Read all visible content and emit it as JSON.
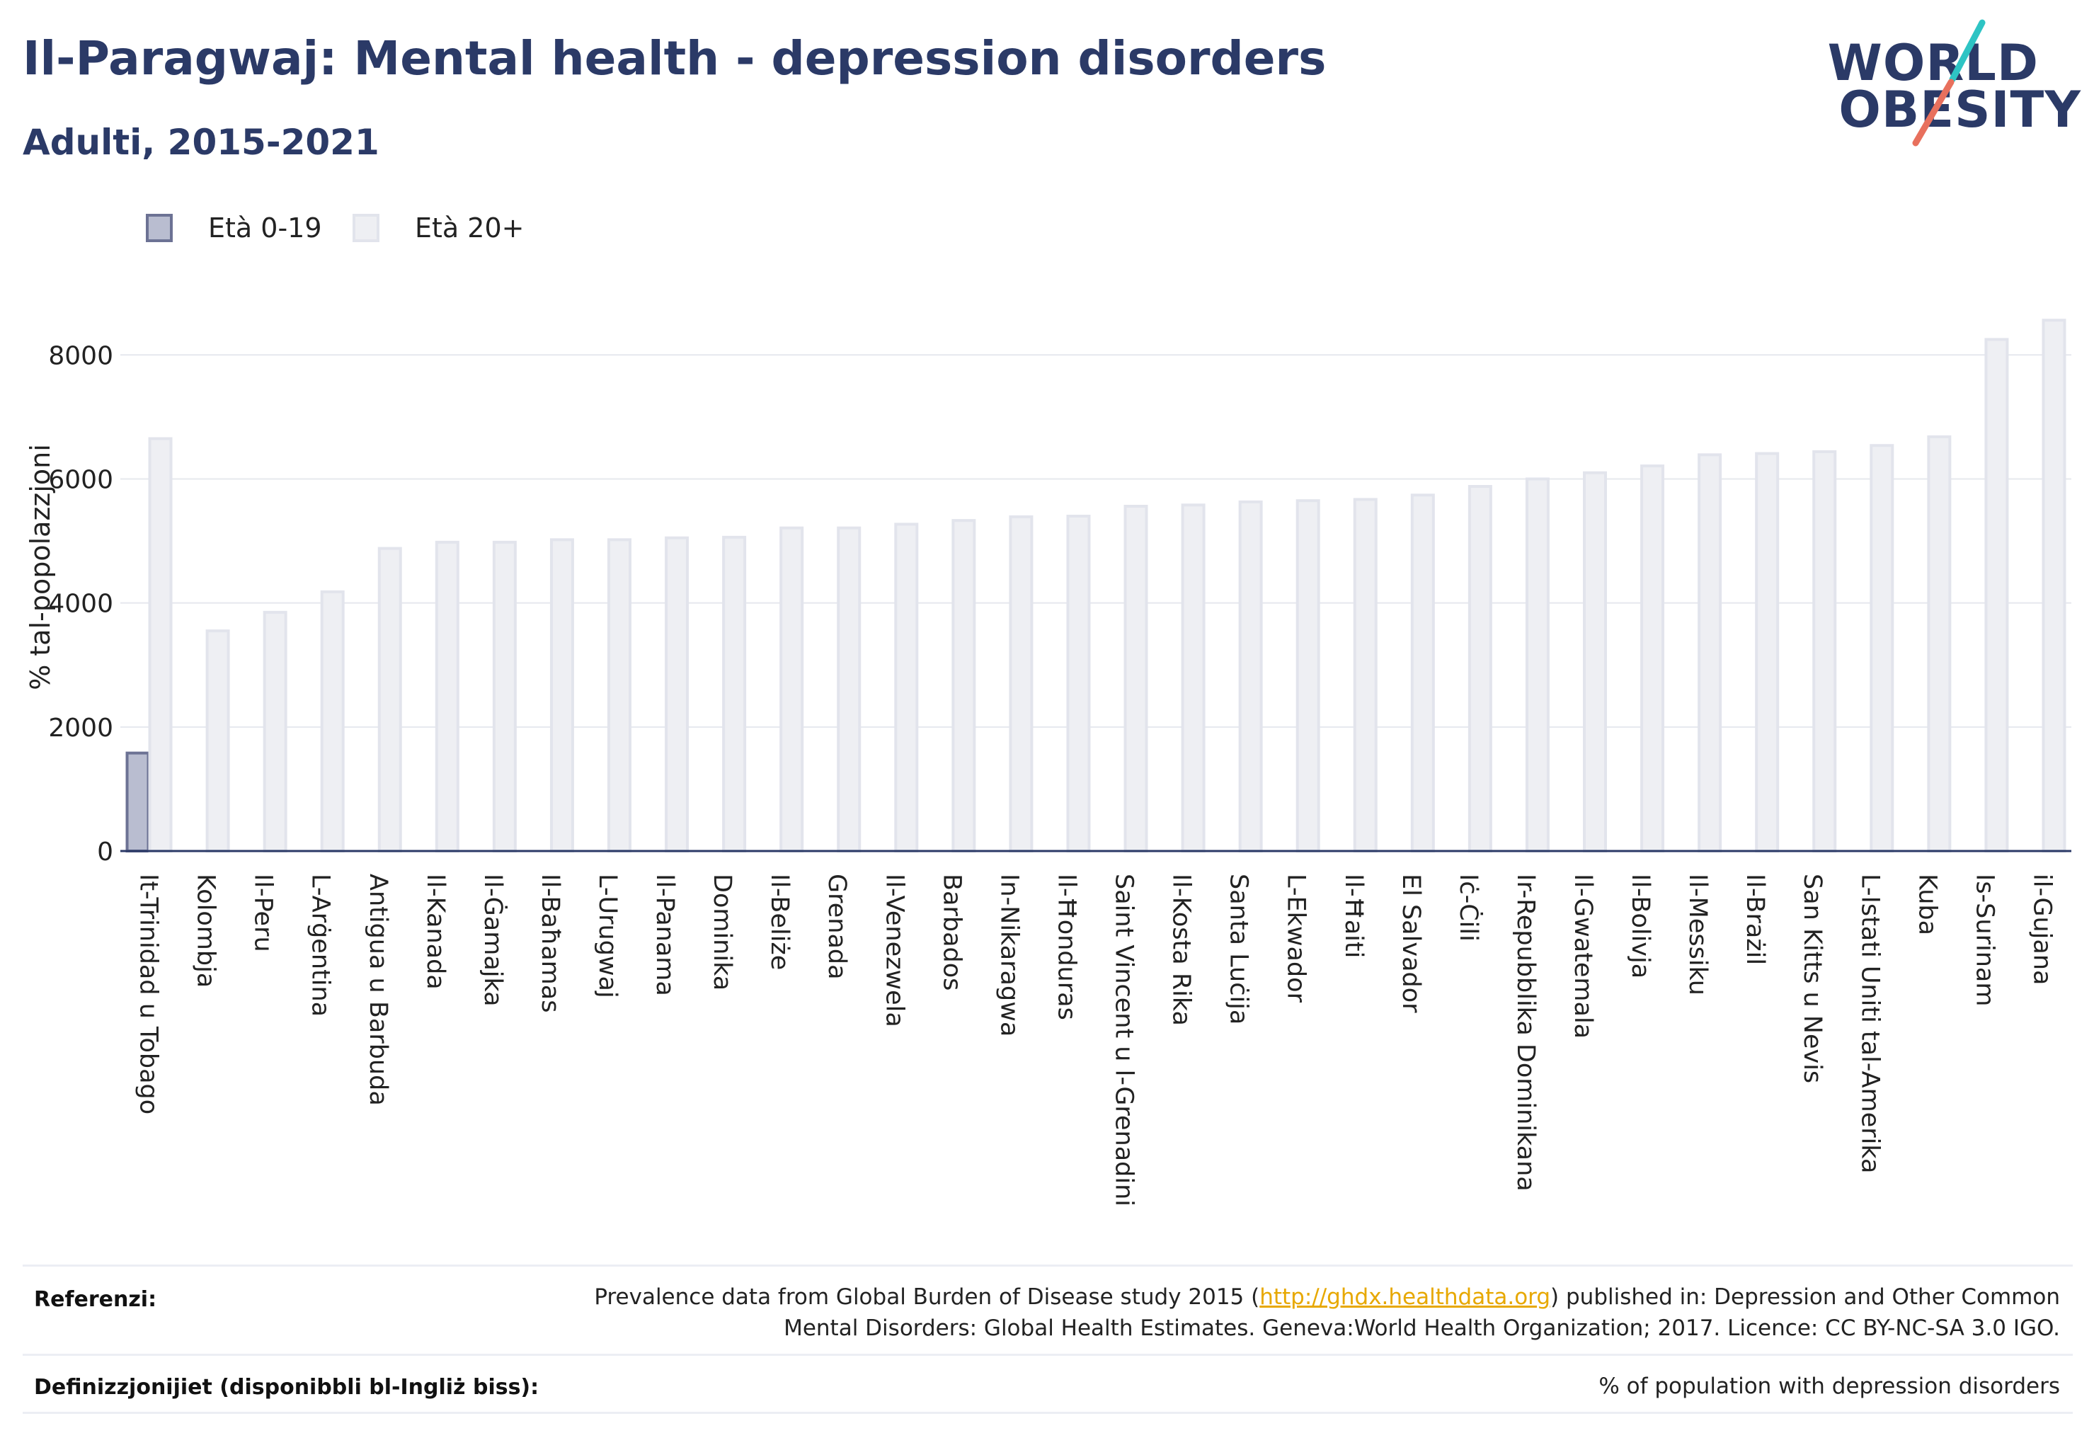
{
  "title": "Il-Paragwaj: Mental health - depression disorders",
  "subtitle": "Adulti, 2015-2021",
  "logo": {
    "line1": "WORLD",
    "line2": "OBESITY"
  },
  "legend": [
    {
      "label": "Età 0-19",
      "fill": "#b9bdd0",
      "stroke": "#6c7294"
    },
    {
      "label": "Età 20+",
      "fill": "#eeeff3",
      "stroke": "#e2e4ec"
    }
  ],
  "colors": {
    "title": "#2b3a67",
    "bar_age0_19_fill": "#b9bdd0",
    "bar_age0_19_stroke": "#6c7294",
    "bar_age20_fill": "#eeeff3",
    "bar_age20_stroke": "#e2e4ec",
    "grid": "#e6e8ee",
    "axis": "#2b3a67",
    "link": "#e7a800",
    "logo_teal": "#2ec4c4",
    "logo_coral": "#e8705d"
  },
  "chart_data": {
    "type": "bar",
    "ylabel": "% tal-popolazzjoni",
    "xlabel": "",
    "ylim": [
      0,
      8700
    ],
    "yticks": [
      0,
      2000,
      4000,
      6000,
      8000
    ],
    "grid": true,
    "legend_position": "top-left",
    "categories": [
      "It-Trinidad u Tobago",
      "Kolombja",
      "Il-Peru",
      "L-Arġentina",
      "Antigua u Barbuda",
      "Il-Kanada",
      "Il-Ġamajka",
      "Il-Baħamas",
      "L-Urugwaj",
      "Il-Panama",
      "Dominika",
      "Il-Beliże",
      "Grenada",
      "Il-Venezwela",
      "Barbados",
      "In-Nikaragwa",
      "Il-Ħonduras",
      "Saint Vincent u l-Grenadini",
      "Il-Kosta Rika",
      "Santa Luċija",
      "L-Ekwador",
      "Il-Ħaiti",
      "El Salvador",
      "Iċ-Ċili",
      "Ir-Repubblika Dominikana",
      "Il-Gwatemala",
      "Il-Bolivja",
      "Il-Messiku",
      "Il-Brażil",
      "San Kitts u Nevis",
      "L-Istati Uniti tal-Amerika",
      "Kuba",
      "Is-Surinam",
      "il-Gujana"
    ],
    "series": [
      {
        "name": "Età 0-19",
        "values": [
          1580,
          null,
          null,
          null,
          null,
          null,
          null,
          null,
          null,
          null,
          null,
          null,
          null,
          null,
          null,
          null,
          null,
          null,
          null,
          null,
          null,
          null,
          null,
          null,
          null,
          null,
          null,
          null,
          null,
          null,
          null,
          null,
          null,
          null
        ]
      },
      {
        "name": "Età 20+",
        "values": [
          6650,
          3550,
          3850,
          4180,
          4880,
          4980,
          4980,
          5020,
          5020,
          5050,
          5060,
          5210,
          5210,
          5270,
          5330,
          5390,
          5400,
          5560,
          5580,
          5630,
          5650,
          5670,
          5740,
          5880,
          6000,
          6100,
          6210,
          6390,
          6410,
          6440,
          6540,
          6680,
          8250,
          8560
        ]
      }
    ]
  },
  "footer": {
    "references_label": "Referenzi:",
    "references_line1_pre": "Prevalence data from Global Burden of Disease study 2015 (",
    "references_link": "http://ghdx.healthdata.org",
    "references_line1_post": ") published in: Depression and Other Common",
    "references_line2": "Mental Disorders: Global Health Estimates. Geneva:World Health Organization; 2017. Licence: CC BY-NC-SA 3.0 IGO.",
    "definitions_label": "Definizzjonijiet (disponibbli bl-Ingliż biss):",
    "definitions_text": "% of population with depression disorders"
  }
}
